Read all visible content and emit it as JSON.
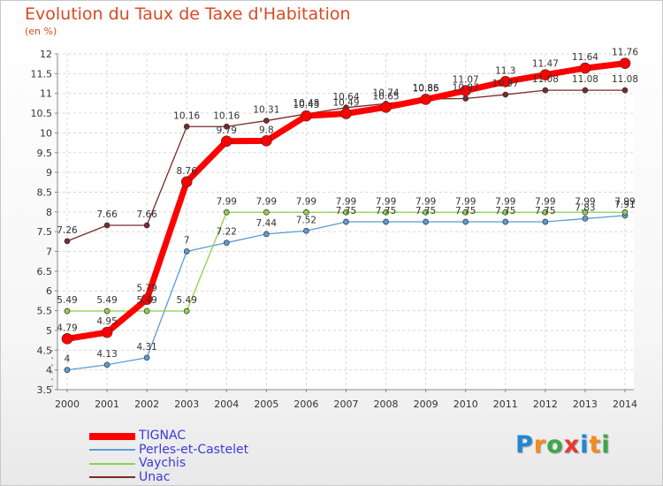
{
  "chart_data": {
    "type": "line",
    "title": "Evolution du Taux de Taxe d'Habitation",
    "subtitle": "(en %)",
    "xlabel": "",
    "ylabel": "",
    "x": [
      2000,
      2001,
      2002,
      2003,
      2004,
      2005,
      2006,
      2007,
      2008,
      2009,
      2010,
      2011,
      2012,
      2013,
      2014
    ],
    "ylim": [
      3.5,
      12
    ],
    "yticks": [
      3.5,
      4,
      4.5,
      5,
      5.5,
      6,
      6.5,
      7,
      7.5,
      8,
      8.5,
      9,
      9.5,
      10,
      10.5,
      11,
      11.5,
      12
    ],
    "grid": true,
    "legend": "bottom-left",
    "series": [
      {
        "name": "Unac",
        "color": "#7a2a2a",
        "values": [
          7.26,
          7.66,
          7.66,
          10.16,
          10.16,
          10.31,
          10.48,
          10.64,
          10.74,
          10.86,
          10.87,
          10.97,
          11.08,
          11.08,
          11.08
        ]
      },
      {
        "name": "Perles-et-Castelet",
        "color": "#5b9bd5",
        "values": [
          4,
          4.13,
          4.31,
          7,
          7.22,
          7.44,
          7.52,
          7.75,
          7.75,
          7.75,
          7.75,
          7.75,
          7.75,
          7.83,
          7.91
        ]
      },
      {
        "name": "Vaychis",
        "color": "#8fd14f",
        "values": [
          5.49,
          5.49,
          5.49,
          5.49,
          7.99,
          7.99,
          7.99,
          7.99,
          7.99,
          7.99,
          7.99,
          7.99,
          7.99,
          7.99,
          7.99
        ]
      },
      {
        "name": "TIGNAC",
        "color": "#ff0000",
        "values": [
          4.79,
          4.95,
          5.79,
          8.76,
          9.79,
          9.8,
          10.43,
          10.49,
          10.65,
          10.85,
          11.07,
          11.3,
          11.47,
          11.64,
          11.76
        ]
      }
    ],
    "legend_order": [
      "TIGNAC",
      "Perles-et-Castelet",
      "Vaychis",
      "Unac"
    ]
  },
  "brand": {
    "letters": [
      "P",
      "r",
      "o",
      "x",
      "i",
      "t",
      "i"
    ],
    "colors": [
      "#1e88d6",
      "#f28c1e",
      "#3aa84a",
      "#e53935",
      "#1e88d6",
      "#f28c1e",
      "#3aa84a"
    ]
  }
}
